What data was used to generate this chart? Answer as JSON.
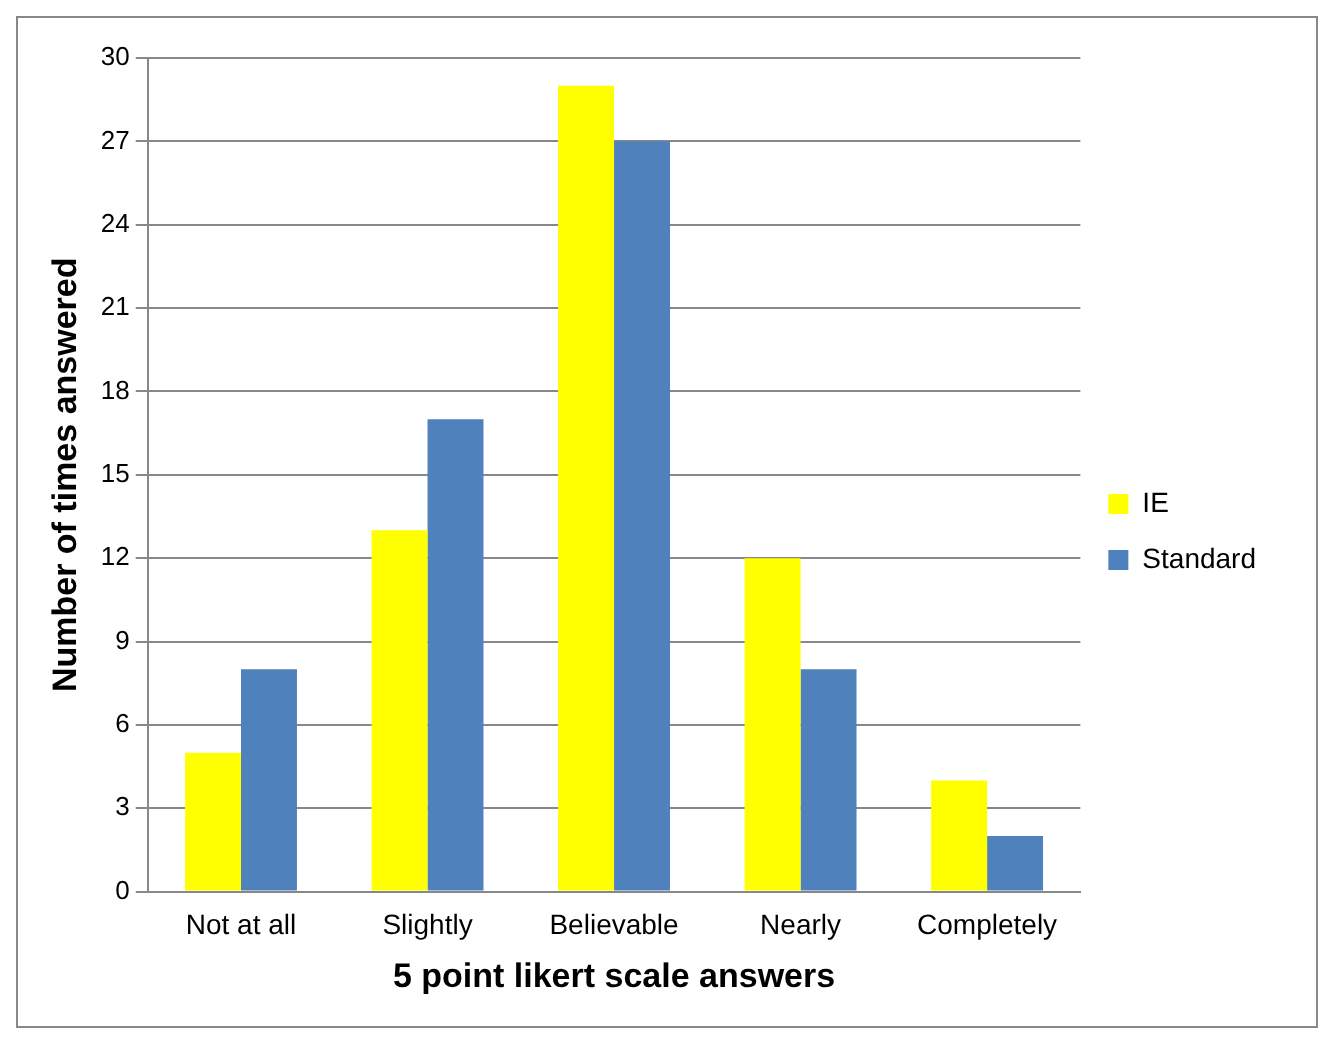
{
  "chart_data": {
    "type": "bar",
    "xlabel": "5 point likert scale answers",
    "ylabel": "Number of times answered",
    "categories": [
      "Not at all",
      "Slightly",
      "Believable",
      "Nearly",
      "Completely"
    ],
    "series": [
      {
        "name": "IE",
        "color": "#ffff00",
        "values": [
          5,
          13,
          29,
          12,
          4
        ]
      },
      {
        "name": "Standard",
        "color": "#4f81bd",
        "values": [
          8,
          17,
          27,
          8,
          2
        ]
      }
    ],
    "ylim": [
      0,
      30
    ],
    "yticks": [
      0,
      3,
      6,
      9,
      12,
      15,
      18,
      21,
      24,
      27,
      30
    ],
    "grid": "y",
    "legend": "right"
  }
}
